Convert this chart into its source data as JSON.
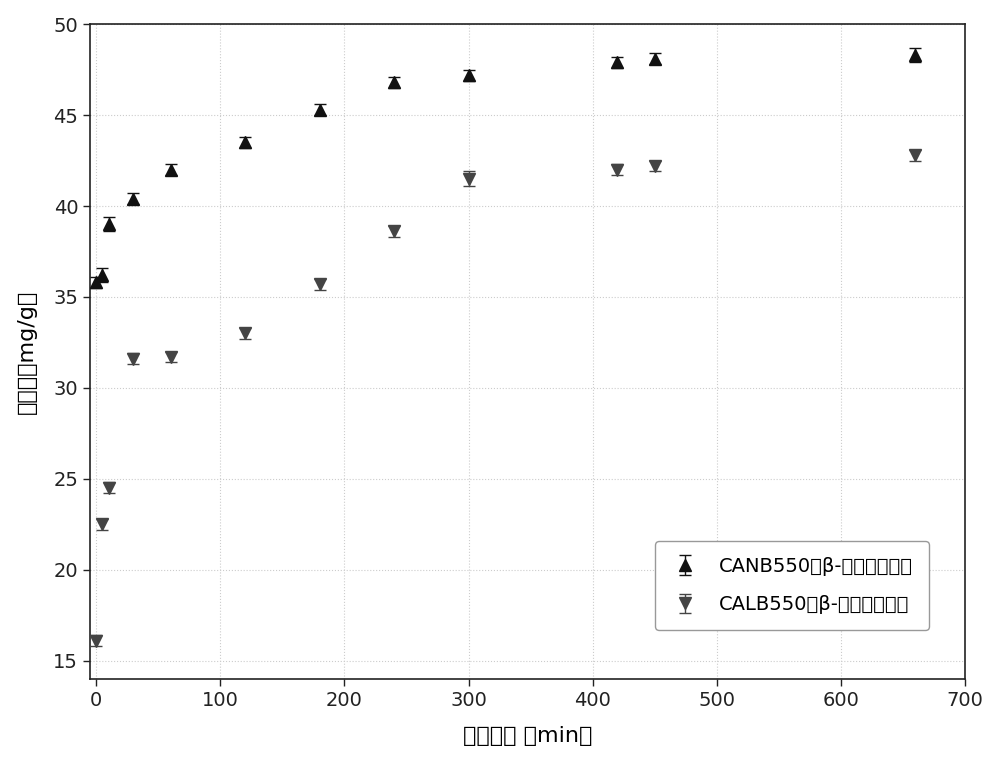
{
  "CANB550_x": [
    0,
    5,
    10,
    30,
    60,
    120,
    180,
    240,
    300,
    420,
    450,
    660
  ],
  "CANB550_y": [
    35.8,
    36.2,
    39.0,
    40.4,
    42.0,
    43.5,
    45.3,
    46.8,
    47.2,
    47.9,
    48.1,
    48.3
  ],
  "CANB550_yerr": [
    0.3,
    0.4,
    0.4,
    0.3,
    0.3,
    0.3,
    0.3,
    0.3,
    0.3,
    0.3,
    0.3,
    0.4
  ],
  "CALB550_x": [
    0,
    5,
    10,
    30,
    60,
    120,
    180,
    240,
    300,
    420,
    450,
    660
  ],
  "CALB550_y": [
    16.1,
    22.5,
    24.5,
    31.6,
    31.7,
    33.0,
    35.7,
    38.6,
    41.5,
    42.0,
    42.2,
    42.8
  ],
  "CALB550_yerr": [
    0.3,
    0.3,
    0.3,
    0.3,
    0.3,
    0.3,
    0.3,
    0.3,
    0.4,
    0.3,
    0.3,
    0.3
  ],
  "xlabel": "平衡时间 （min）",
  "ylabel": "吸附量（mg/g）",
  "xlim": [
    -5,
    700
  ],
  "ylim": [
    14,
    50
  ],
  "xticks": [
    0,
    100,
    200,
    300,
    400,
    500,
    600,
    700
  ],
  "yticks": [
    15,
    20,
    25,
    30,
    35,
    40,
    45,
    50
  ],
  "legend1": "CANB550对β-硫丹的吸附量",
  "legend2": "CALB550对β-硫丹的吸附量",
  "marker_color_up": "#111111",
  "marker_color_down": "#444444",
  "bg_color": "#ffffff",
  "grid_color": "#cccccc"
}
